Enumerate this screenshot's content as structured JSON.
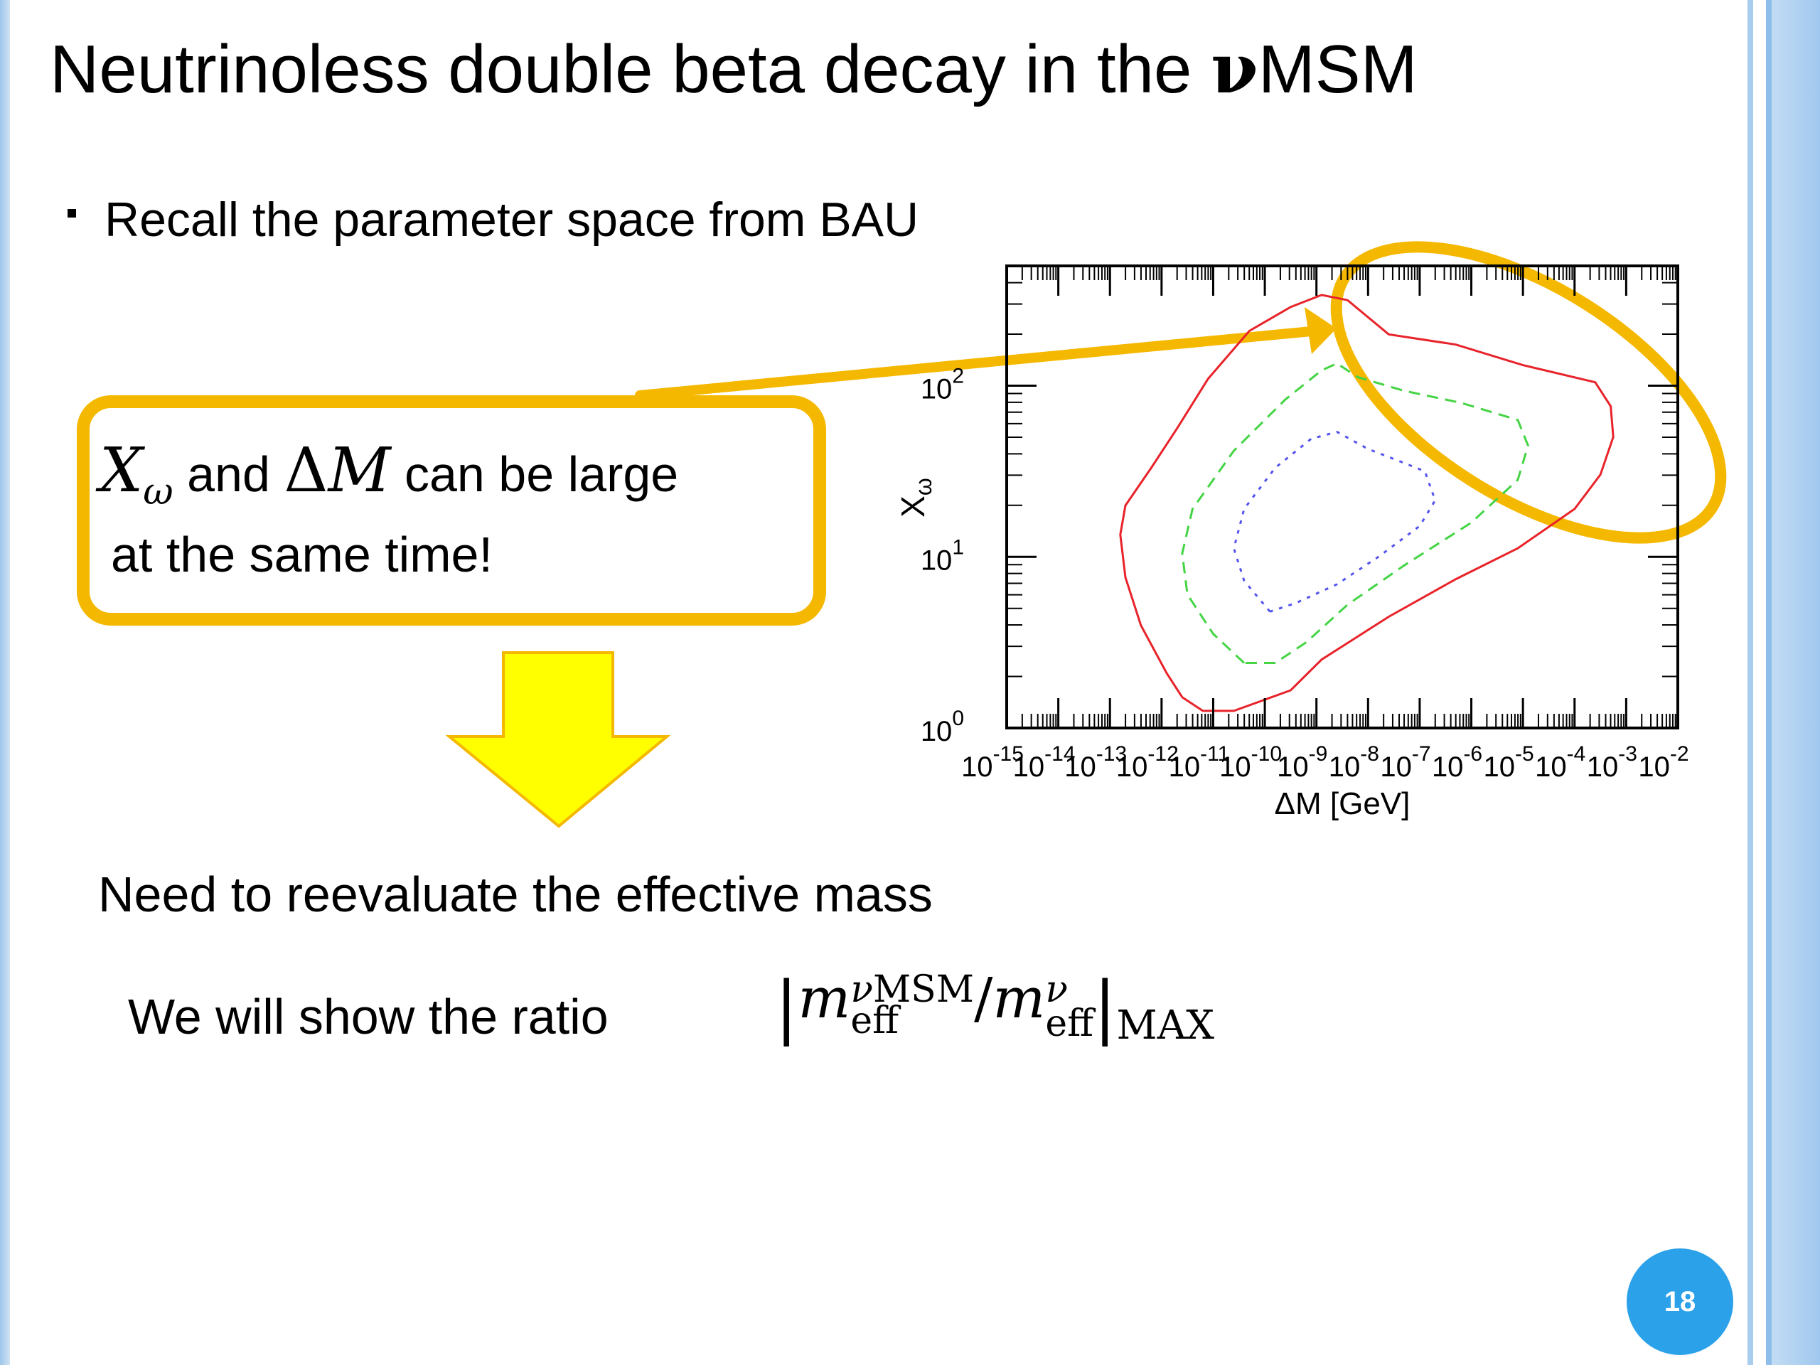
{
  "slide": {
    "title_text": "Neutrinoless double beta decay in the ",
    "title_nu": "ν",
    "title_tail": "MSM",
    "bullet": "Recall the parameter space from BAU",
    "callout": {
      "line1_and": " and ",
      "line1_tail": " can be large",
      "line2": "at the same time!"
    },
    "conclusion": "Need to reevaluate the effective mass",
    "ratio_label": "We will show the ratio",
    "slide_number": "18",
    "accent_color": "#f5b800",
    "arrow_color": "#ffff00"
  },
  "chart_data": {
    "type": "contour",
    "xlabel": "ΔM [GeV]",
    "ylabel": "X",
    "ylabel_sub": "ω",
    "x_scale": "log",
    "y_scale": "log",
    "xlim_exp": [
      -15,
      -2
    ],
    "ylim_exp": [
      0,
      2.7
    ],
    "x_tick_exponents": [
      "-15",
      "-14",
      "-13",
      "-12",
      "-11",
      "-10",
      "-9",
      "-8",
      "-7",
      "-6",
      "-5",
      "-4",
      "-3",
      "-2"
    ],
    "y_tick_exponents": [
      "0",
      "1",
      "2"
    ],
    "series": [
      {
        "color": "#e8232a",
        "style": "solid",
        "points": [
          [
            -11.6,
            0.18
          ],
          [
            -11.9,
            0.32
          ],
          [
            -12.4,
            0.6
          ],
          [
            -12.7,
            0.88
          ],
          [
            -12.8,
            1.13
          ],
          [
            -12.7,
            1.3
          ],
          [
            -12.2,
            1.52
          ],
          [
            -11.7,
            1.75
          ],
          [
            -11.1,
            2.04
          ],
          [
            -10.3,
            2.32
          ],
          [
            -9.5,
            2.46
          ],
          [
            -8.9,
            2.53
          ],
          [
            -8.4,
            2.5
          ],
          [
            -7.6,
            2.3
          ],
          [
            -6.3,
            2.24
          ],
          [
            -5.0,
            2.12
          ],
          [
            -3.6,
            2.02
          ],
          [
            -3.3,
            1.88
          ],
          [
            -3.25,
            1.7
          ],
          [
            -3.5,
            1.48
          ],
          [
            -4.0,
            1.28
          ],
          [
            -5.1,
            1.05
          ],
          [
            -6.3,
            0.87
          ],
          [
            -7.6,
            0.65
          ],
          [
            -8.9,
            0.4
          ],
          [
            -9.5,
            0.22
          ],
          [
            -10.6,
            0.1
          ],
          [
            -11.2,
            0.1
          ],
          [
            -11.6,
            0.18
          ]
        ]
      },
      {
        "color": "#44d444",
        "style": "dashed",
        "points": [
          [
            -10.4,
            0.38
          ],
          [
            -11.0,
            0.55
          ],
          [
            -11.5,
            0.78
          ],
          [
            -11.6,
            1.02
          ],
          [
            -11.4,
            1.28
          ],
          [
            -10.6,
            1.62
          ],
          [
            -9.6,
            1.92
          ],
          [
            -8.9,
            2.09
          ],
          [
            -8.6,
            2.13
          ],
          [
            -8.2,
            2.05
          ],
          [
            -7.3,
            1.97
          ],
          [
            -6.2,
            1.9
          ],
          [
            -5.1,
            1.8
          ],
          [
            -4.9,
            1.65
          ],
          [
            -5.1,
            1.45
          ],
          [
            -6.0,
            1.2
          ],
          [
            -7.3,
            0.95
          ],
          [
            -8.4,
            0.72
          ],
          [
            -9.2,
            0.5
          ],
          [
            -9.8,
            0.38
          ],
          [
            -10.4,
            0.38
          ]
        ]
      },
      {
        "color": "#5555ee",
        "style": "dotted",
        "points": [
          [
            -9.9,
            0.68
          ],
          [
            -10.4,
            0.86
          ],
          [
            -10.6,
            1.05
          ],
          [
            -10.4,
            1.28
          ],
          [
            -9.8,
            1.52
          ],
          [
            -9.1,
            1.69
          ],
          [
            -8.6,
            1.73
          ],
          [
            -8.0,
            1.63
          ],
          [
            -7.4,
            1.56
          ],
          [
            -6.9,
            1.5
          ],
          [
            -6.7,
            1.33
          ],
          [
            -7.0,
            1.18
          ],
          [
            -7.8,
            1.0
          ],
          [
            -8.6,
            0.84
          ],
          [
            -9.4,
            0.73
          ],
          [
            -9.9,
            0.68
          ]
        ]
      }
    ]
  }
}
